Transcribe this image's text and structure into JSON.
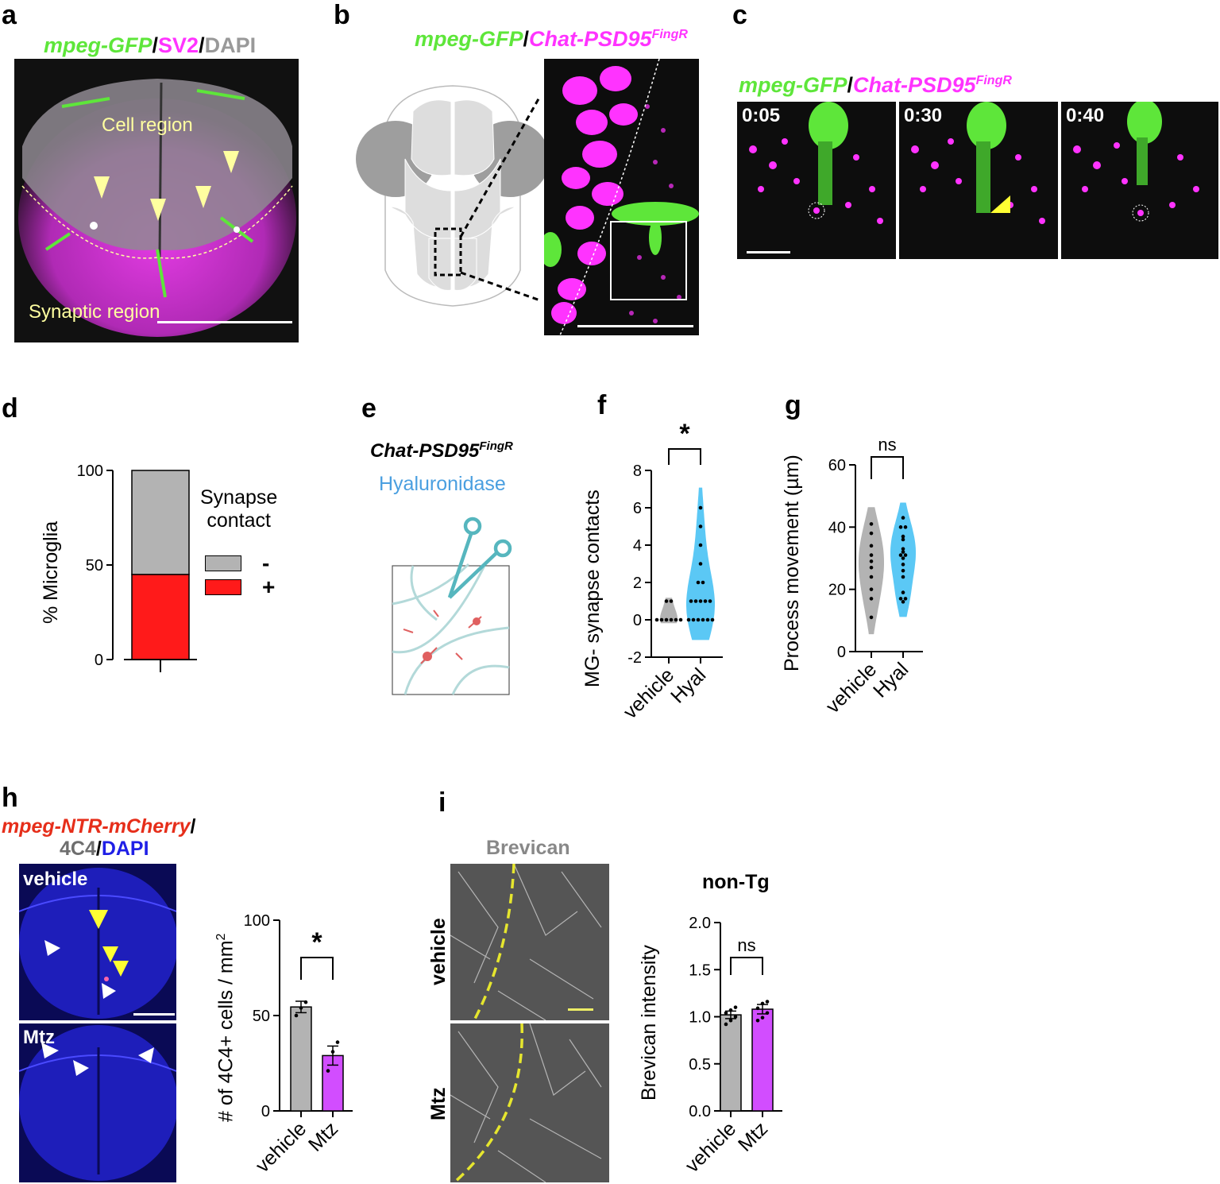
{
  "panels": {
    "a": {
      "letter": "a",
      "channels": [
        "mpeg-GFP",
        "/",
        "SV2",
        "/",
        "DAPI"
      ],
      "labels": {
        "cell_region": "Cell region",
        "synaptic_region": "Synaptic region"
      }
    },
    "b": {
      "letter": "b",
      "channels": [
        "mpeg-GFP",
        "/",
        "Chat-PSD95",
        "FingR"
      ]
    },
    "c": {
      "letter": "c",
      "channels": [
        "mpeg-GFP",
        "/",
        "Chat-PSD95",
        "FingR"
      ],
      "timepoints": [
        "0:05",
        "0:30",
        "0:40"
      ]
    },
    "d": {
      "letter": "d",
      "ylabel": "% Microglia",
      "legend_title_line1": "Synapse",
      "legend_title_line2": "contact",
      "legend_items": [
        {
          "label": "-",
          "color": "#b3b3b3"
        },
        {
          "label": "+",
          "color": "#ff1a1a"
        }
      ]
    },
    "e": {
      "letter": "e",
      "line1": "Chat-PSD95",
      "line1_sup": "FingR",
      "line2": "Hyaluronidase"
    },
    "f": {
      "letter": "f"
    },
    "g": {
      "letter": "g"
    },
    "h": {
      "letter": "h",
      "title_red": "mpeg-NTR-mCherry",
      "title_slash1": "/",
      "title_gray": "4C4",
      "title_slash2": "/",
      "title_blue": "DAPI",
      "conditions": [
        "vehicle",
        "Mtz"
      ]
    },
    "i": {
      "letter": "i",
      "stain": "Brevican",
      "conditions": [
        "vehicle",
        "Mtz"
      ],
      "chart_title": "non-Tg"
    }
  },
  "colors": {
    "green": "#5ee63a",
    "magenta": "#ff33ff",
    "gray_bar": "#b3b3b3",
    "red_bar": "#ff1a1a",
    "cyan": "#5bc8f5",
    "purple": "#d24dff",
    "yellow_arrow": "#ffff66",
    "blue_dapi": "#1f1fe6"
  },
  "chart_data": [
    {
      "id": "d",
      "type": "bar",
      "stacked": true,
      "categories": [
        ""
      ],
      "series": [
        {
          "name": "+",
          "values": [
            45
          ]
        },
        {
          "name": "-",
          "values": [
            55
          ]
        }
      ],
      "ylabel": "% Microglia",
      "ylim": [
        0,
        100
      ],
      "yticks": [
        0,
        50,
        100
      ],
      "legend_title": "Synapse contact"
    },
    {
      "id": "f",
      "type": "scatter",
      "style": "violin",
      "categories": [
        "vehicle",
        "Hyal"
      ],
      "series": [
        {
          "name": "vehicle",
          "values": [
            0,
            0,
            0,
            0,
            0,
            0,
            1,
            1
          ]
        },
        {
          "name": "Hyal",
          "values": [
            0,
            0,
            0,
            0,
            0,
            0,
            1,
            1,
            1,
            1,
            1,
            2,
            2,
            3,
            4,
            5,
            6
          ]
        }
      ],
      "ylabel": "MG- synapse contacts",
      "ylim": [
        -2,
        8
      ],
      "yticks": [
        -2,
        0,
        2,
        4,
        6,
        8
      ],
      "significance": "*"
    },
    {
      "id": "g",
      "type": "scatter",
      "style": "violin",
      "categories": [
        "vehicle",
        "Hyal"
      ],
      "series": [
        {
          "name": "vehicle",
          "values": [
            11,
            17,
            20,
            24,
            27,
            29,
            31,
            34,
            38,
            41
          ]
        },
        {
          "name": "Hyal",
          "values": [
            16,
            17,
            17,
            19,
            24,
            26,
            28,
            30,
            31,
            31,
            32,
            33,
            36,
            37,
            40,
            40,
            43
          ]
        }
      ],
      "ylabel": "Process movement (µm)",
      "ylim": [
        0,
        60
      ],
      "yticks": [
        0,
        20,
        40,
        60
      ],
      "significance": "ns"
    },
    {
      "id": "h",
      "type": "bar",
      "categories": [
        "vehicle",
        "Mtz"
      ],
      "values": [
        54.5,
        29
      ],
      "errors": [
        3,
        5
      ],
      "points": [
        [
          50,
          54,
          57
        ],
        [
          21,
          31,
          36
        ]
      ],
      "ylabel": "# of 4C4+ cells / mm",
      "ylabel_sup": "2",
      "ylim": [
        0,
        100
      ],
      "yticks": [
        0,
        50,
        100
      ],
      "significance": "*"
    },
    {
      "id": "i",
      "type": "bar",
      "title": "non-Tg",
      "categories": [
        "vehicle",
        "Mtz"
      ],
      "values": [
        1.02,
        1.08
      ],
      "errors": [
        0.04,
        0.05
      ],
      "points": [
        [
          0.92,
          0.96,
          1.0,
          1.04,
          1.07,
          1.1
        ],
        [
          0.96,
          0.99,
          1.04,
          1.09,
          1.14,
          1.16
        ]
      ],
      "ylabel": "Brevican intensity",
      "ylim": [
        0.0,
        2.0
      ],
      "yticks": [
        0.0,
        0.5,
        1.0,
        1.5,
        2.0
      ],
      "significance": "ns"
    }
  ]
}
